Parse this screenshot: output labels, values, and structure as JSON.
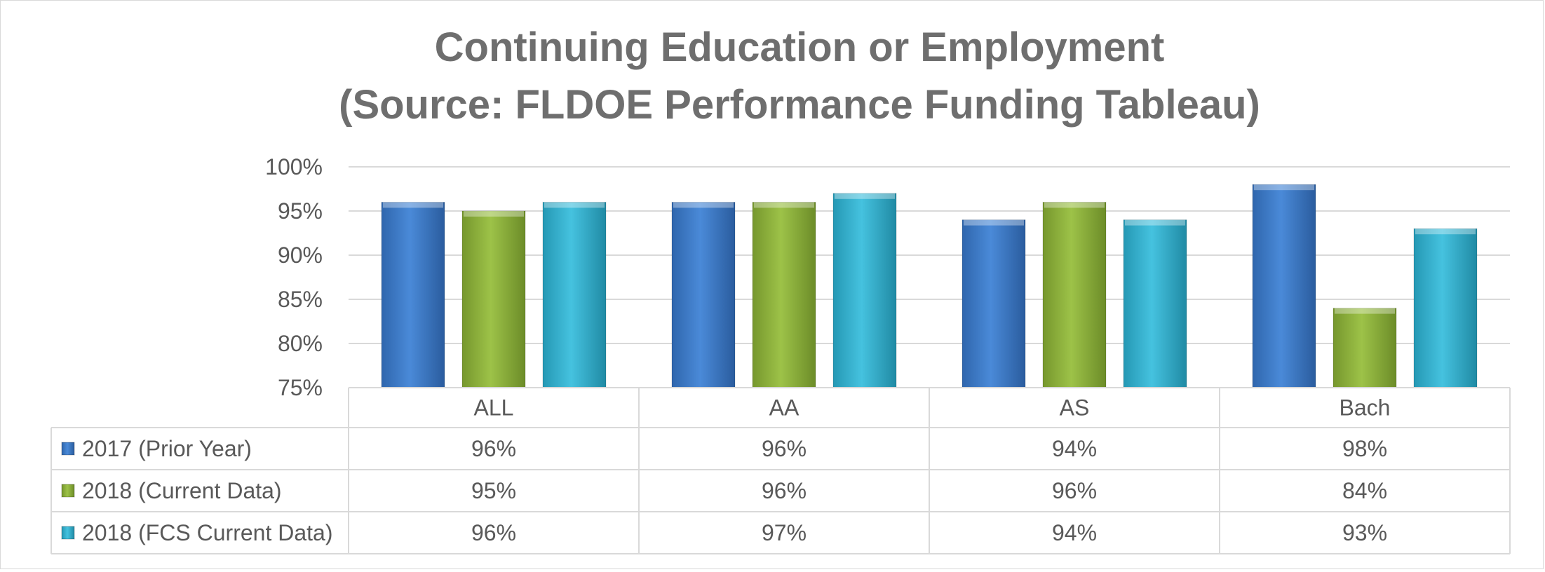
{
  "chart_data": {
    "type": "bar",
    "title": "Continuing Education or Employment",
    "subtitle": "(Source: FLDOE Performance Funding Tableau)",
    "categories": [
      "ALL",
      "AA",
      "AS",
      "Bach"
    ],
    "series": [
      {
        "name": "2017 (Prior Year)",
        "values": [
          96,
          96,
          94,
          98
        ],
        "labels": [
          "96%",
          "96%",
          "94%",
          "98%"
        ],
        "color": "#3a78c9"
      },
      {
        "name": "2018 (Current Data)",
        "values": [
          95,
          96,
          96,
          84
        ],
        "labels": [
          "95%",
          "96%",
          "96%",
          "84%"
        ],
        "color": "#8cb23a"
      },
      {
        "name": "2018 (FCS Current Data)",
        "values": [
          96,
          97,
          94,
          93
        ],
        "labels": [
          "96%",
          "97%",
          "94%",
          "93%"
        ],
        "color": "#33b3d1"
      }
    ],
    "yticks": [
      "75%",
      "80%",
      "85%",
      "90%",
      "95%",
      "100%"
    ],
    "ylim": [
      75,
      100
    ],
    "grid": true,
    "legend": "data-table"
  }
}
